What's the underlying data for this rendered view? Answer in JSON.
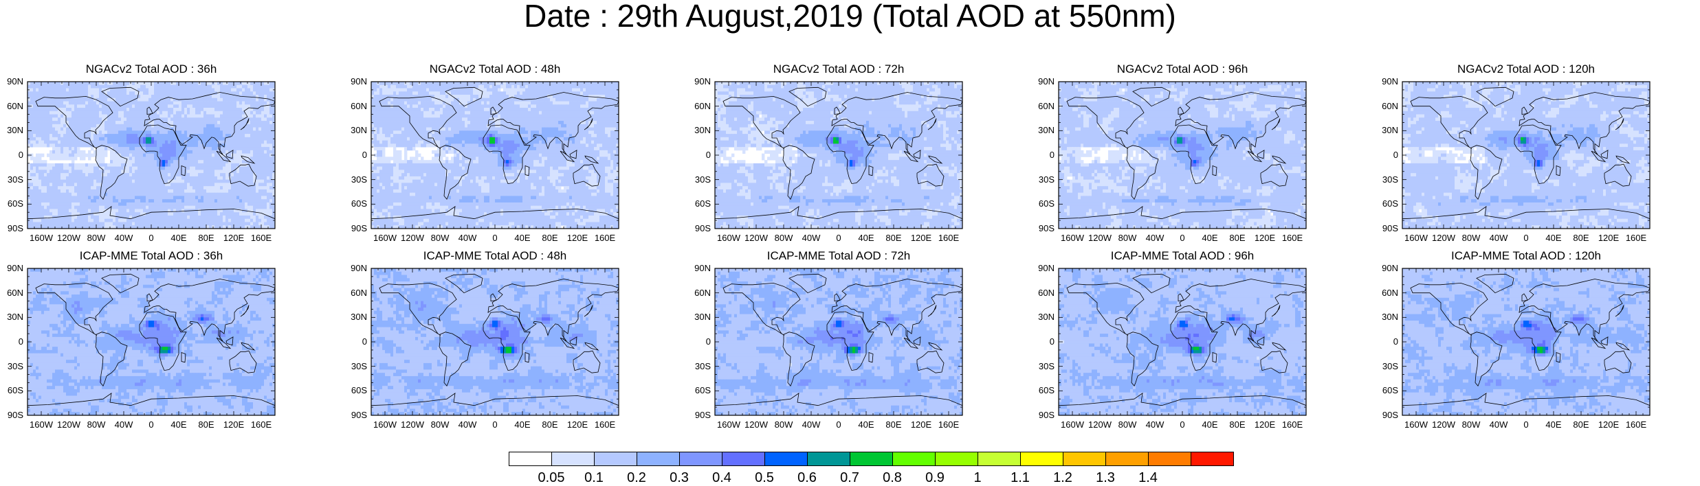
{
  "title": "Date : 29th August,2019 (Total AOD at 550nm)",
  "panels": [
    {
      "title": "NGACv2 Total AOD : 36h",
      "model": "ngac"
    },
    {
      "title": "NGACv2 Total AOD : 48h",
      "model": "ngac"
    },
    {
      "title": "NGACv2 Total AOD : 72h",
      "model": "ngac"
    },
    {
      "title": "NGACv2 Total AOD : 96h",
      "model": "ngac"
    },
    {
      "title": "NGACv2 Total AOD : 120h",
      "model": "ngac"
    },
    {
      "title": "ICAP-MME Total AOD : 36h",
      "model": "icap"
    },
    {
      "title": "ICAP-MME Total AOD : 48h",
      "model": "icap"
    },
    {
      "title": "ICAP-MME Total AOD : 72h",
      "model": "icap"
    },
    {
      "title": "ICAP-MME Total AOD : 96h",
      "model": "icap"
    },
    {
      "title": "ICAP-MME Total AOD : 120h",
      "model": "icap"
    }
  ],
  "lat_ticks": [
    "90N",
    "60N",
    "30N",
    "0",
    "30S",
    "60S",
    "90S"
  ],
  "lon_ticks": [
    "160W",
    "120W",
    "80W",
    "40W",
    "0",
    "40E",
    "80E",
    "120E",
    "160E"
  ],
  "lon_tick_values": [
    -160,
    -120,
    -80,
    -40,
    0,
    40,
    80,
    120,
    160
  ],
  "lat_tick_values": [
    90,
    60,
    30,
    0,
    -30,
    -60,
    -90
  ],
  "colorbar": {
    "labels": [
      "0.05",
      "0.1",
      "0.2",
      "0.3",
      "0.4",
      "0.5",
      "0.6",
      "0.7",
      "0.8",
      "0.9",
      "1",
      "1.1",
      "1.2",
      "1.3",
      "1.4"
    ],
    "colors": [
      "#ffffff",
      "#d6e2ff",
      "#b5c9ff",
      "#8eb2ff",
      "#7f96ff",
      "#6370ff",
      "#0063ff",
      "#009696",
      "#00c633",
      "#63ff00",
      "#96ff00",
      "#c6ff33",
      "#ffff00",
      "#ffc600",
      "#ffa000",
      "#ff7c00",
      "#ff1900"
    ]
  }
}
